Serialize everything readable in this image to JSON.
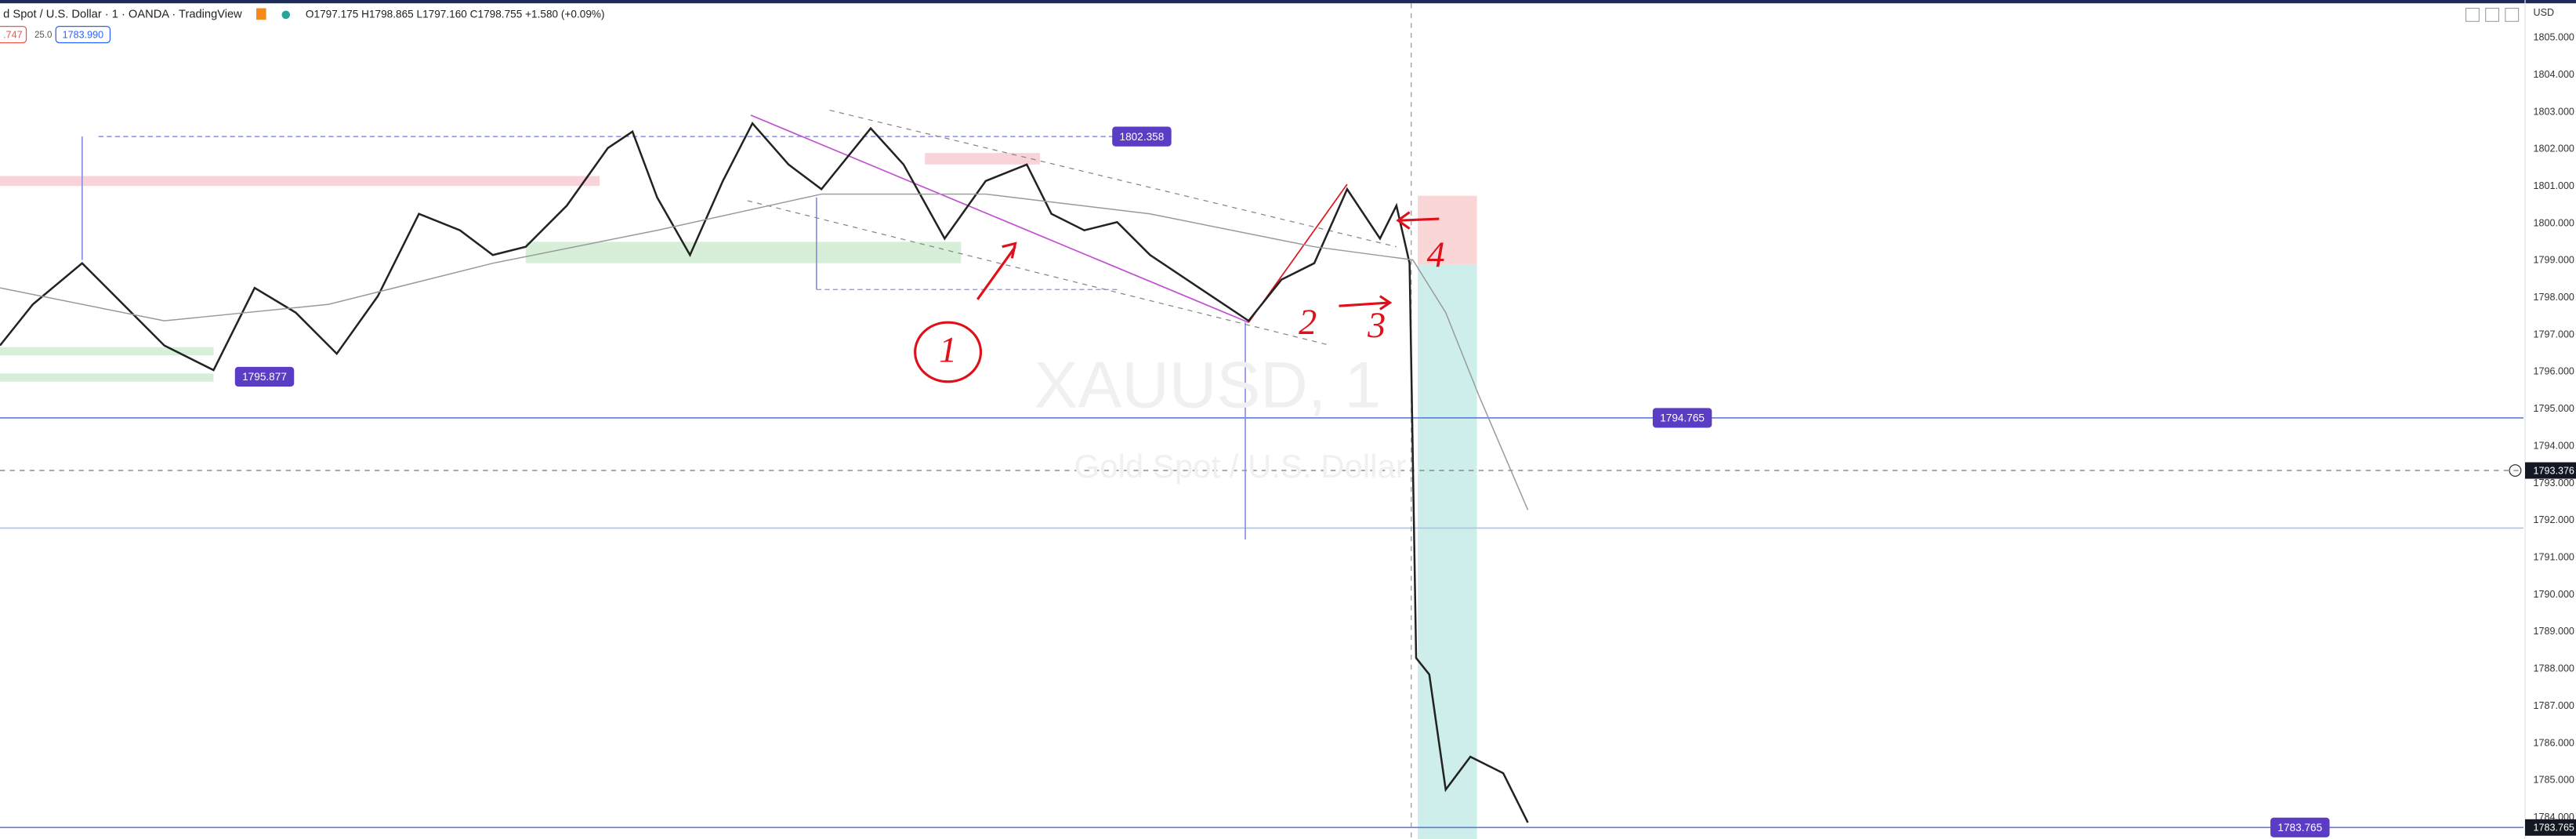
{
  "header": {
    "symbol": "d Spot / U.S. Dollar · 1 · OANDA · TradingView",
    "ohlc": "O1797.175 H1798.865 L1797.160 C1798.755 +1.580 (+0.09%)",
    "sell": ".747",
    "spread": "25.0",
    "buy": "1783.990"
  },
  "price_axis": {
    "currency": "USD",
    "labels": [
      "1805.000",
      "1804.000",
      "1803.000",
      "1802.000",
      "1801.000",
      "1800.000",
      "1799.000",
      "1798.000",
      "1797.000",
      "1796.000",
      "1795.000",
      "1794.000",
      "1793.000",
      "1792.000",
      "1791.000",
      "1790.000",
      "1789.000",
      "1788.000",
      "1787.000",
      "1786.000",
      "1785.000",
      "1784.000"
    ],
    "current_price": "1793.376",
    "last_price": "1783.765"
  },
  "price_tags": [
    "1802.358",
    "1795.877",
    "1794.765",
    "1783.765"
  ],
  "watermark": {
    "symbol": "XAUUSD, 1",
    "description": "Gold Spot / U.S. Dollar"
  },
  "annotations": [
    "1",
    "2",
    "3",
    "4"
  ]
}
